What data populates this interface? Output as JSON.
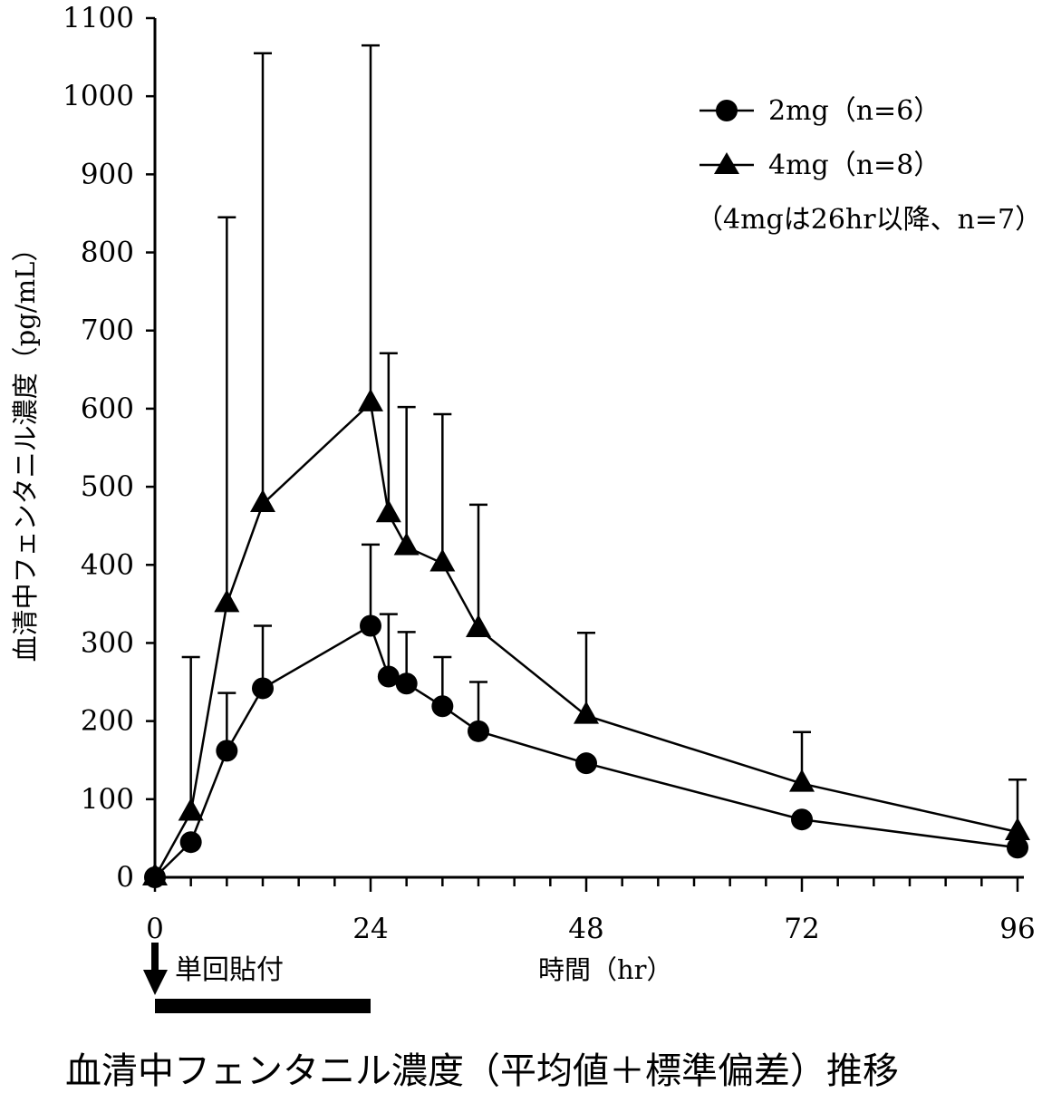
{
  "chart_data": {
    "type": "line",
    "title": "",
    "caption": "血清中フェンタニル濃度（平均値＋標準偏差）推移",
    "xlabel": "時間（hr）",
    "ylabel": "血清中フェンタニル濃度（pg/mL）",
    "xlim": [
      0,
      96
    ],
    "ylim": [
      0,
      1100
    ],
    "x_ticks": [
      "0",
      "24",
      "48",
      "72",
      "96"
    ],
    "y_ticks": [
      "0",
      "100",
      "200",
      "300",
      "400",
      "500",
      "600",
      "700",
      "800",
      "900",
      "1000",
      "1100"
    ],
    "legend_position": "top-right",
    "legend_note": "（4mgは26hr以降、n=7）",
    "series": [
      {
        "name": "2mg（n=6）",
        "marker": "circle",
        "x": [
          0,
          4,
          8,
          12,
          24,
          26,
          28,
          32,
          36,
          48,
          72,
          96
        ],
        "y": [
          0,
          45,
          162,
          242,
          322,
          257,
          248,
          219,
          187,
          146,
          74,
          38
        ],
        "y_err_upper": [
          0,
          0,
          236,
          322,
          426,
          337,
          314,
          282,
          250,
          0,
          0,
          0
        ]
      },
      {
        "name": "4mg（n=8）",
        "marker": "triangle",
        "x": [
          0,
          4,
          8,
          12,
          24,
          26,
          28,
          32,
          36,
          48,
          72,
          96
        ],
        "y": [
          0,
          83,
          350,
          478,
          607,
          465,
          423,
          402,
          318,
          207,
          120,
          58
        ],
        "y_err_upper": [
          0,
          282,
          845,
          1055,
          1065,
          671,
          602,
          593,
          477,
          313,
          186,
          125
        ]
      }
    ],
    "annotation": {
      "label": "単回貼付",
      "bar_start_x": 0,
      "bar_end_x": 24
    }
  }
}
